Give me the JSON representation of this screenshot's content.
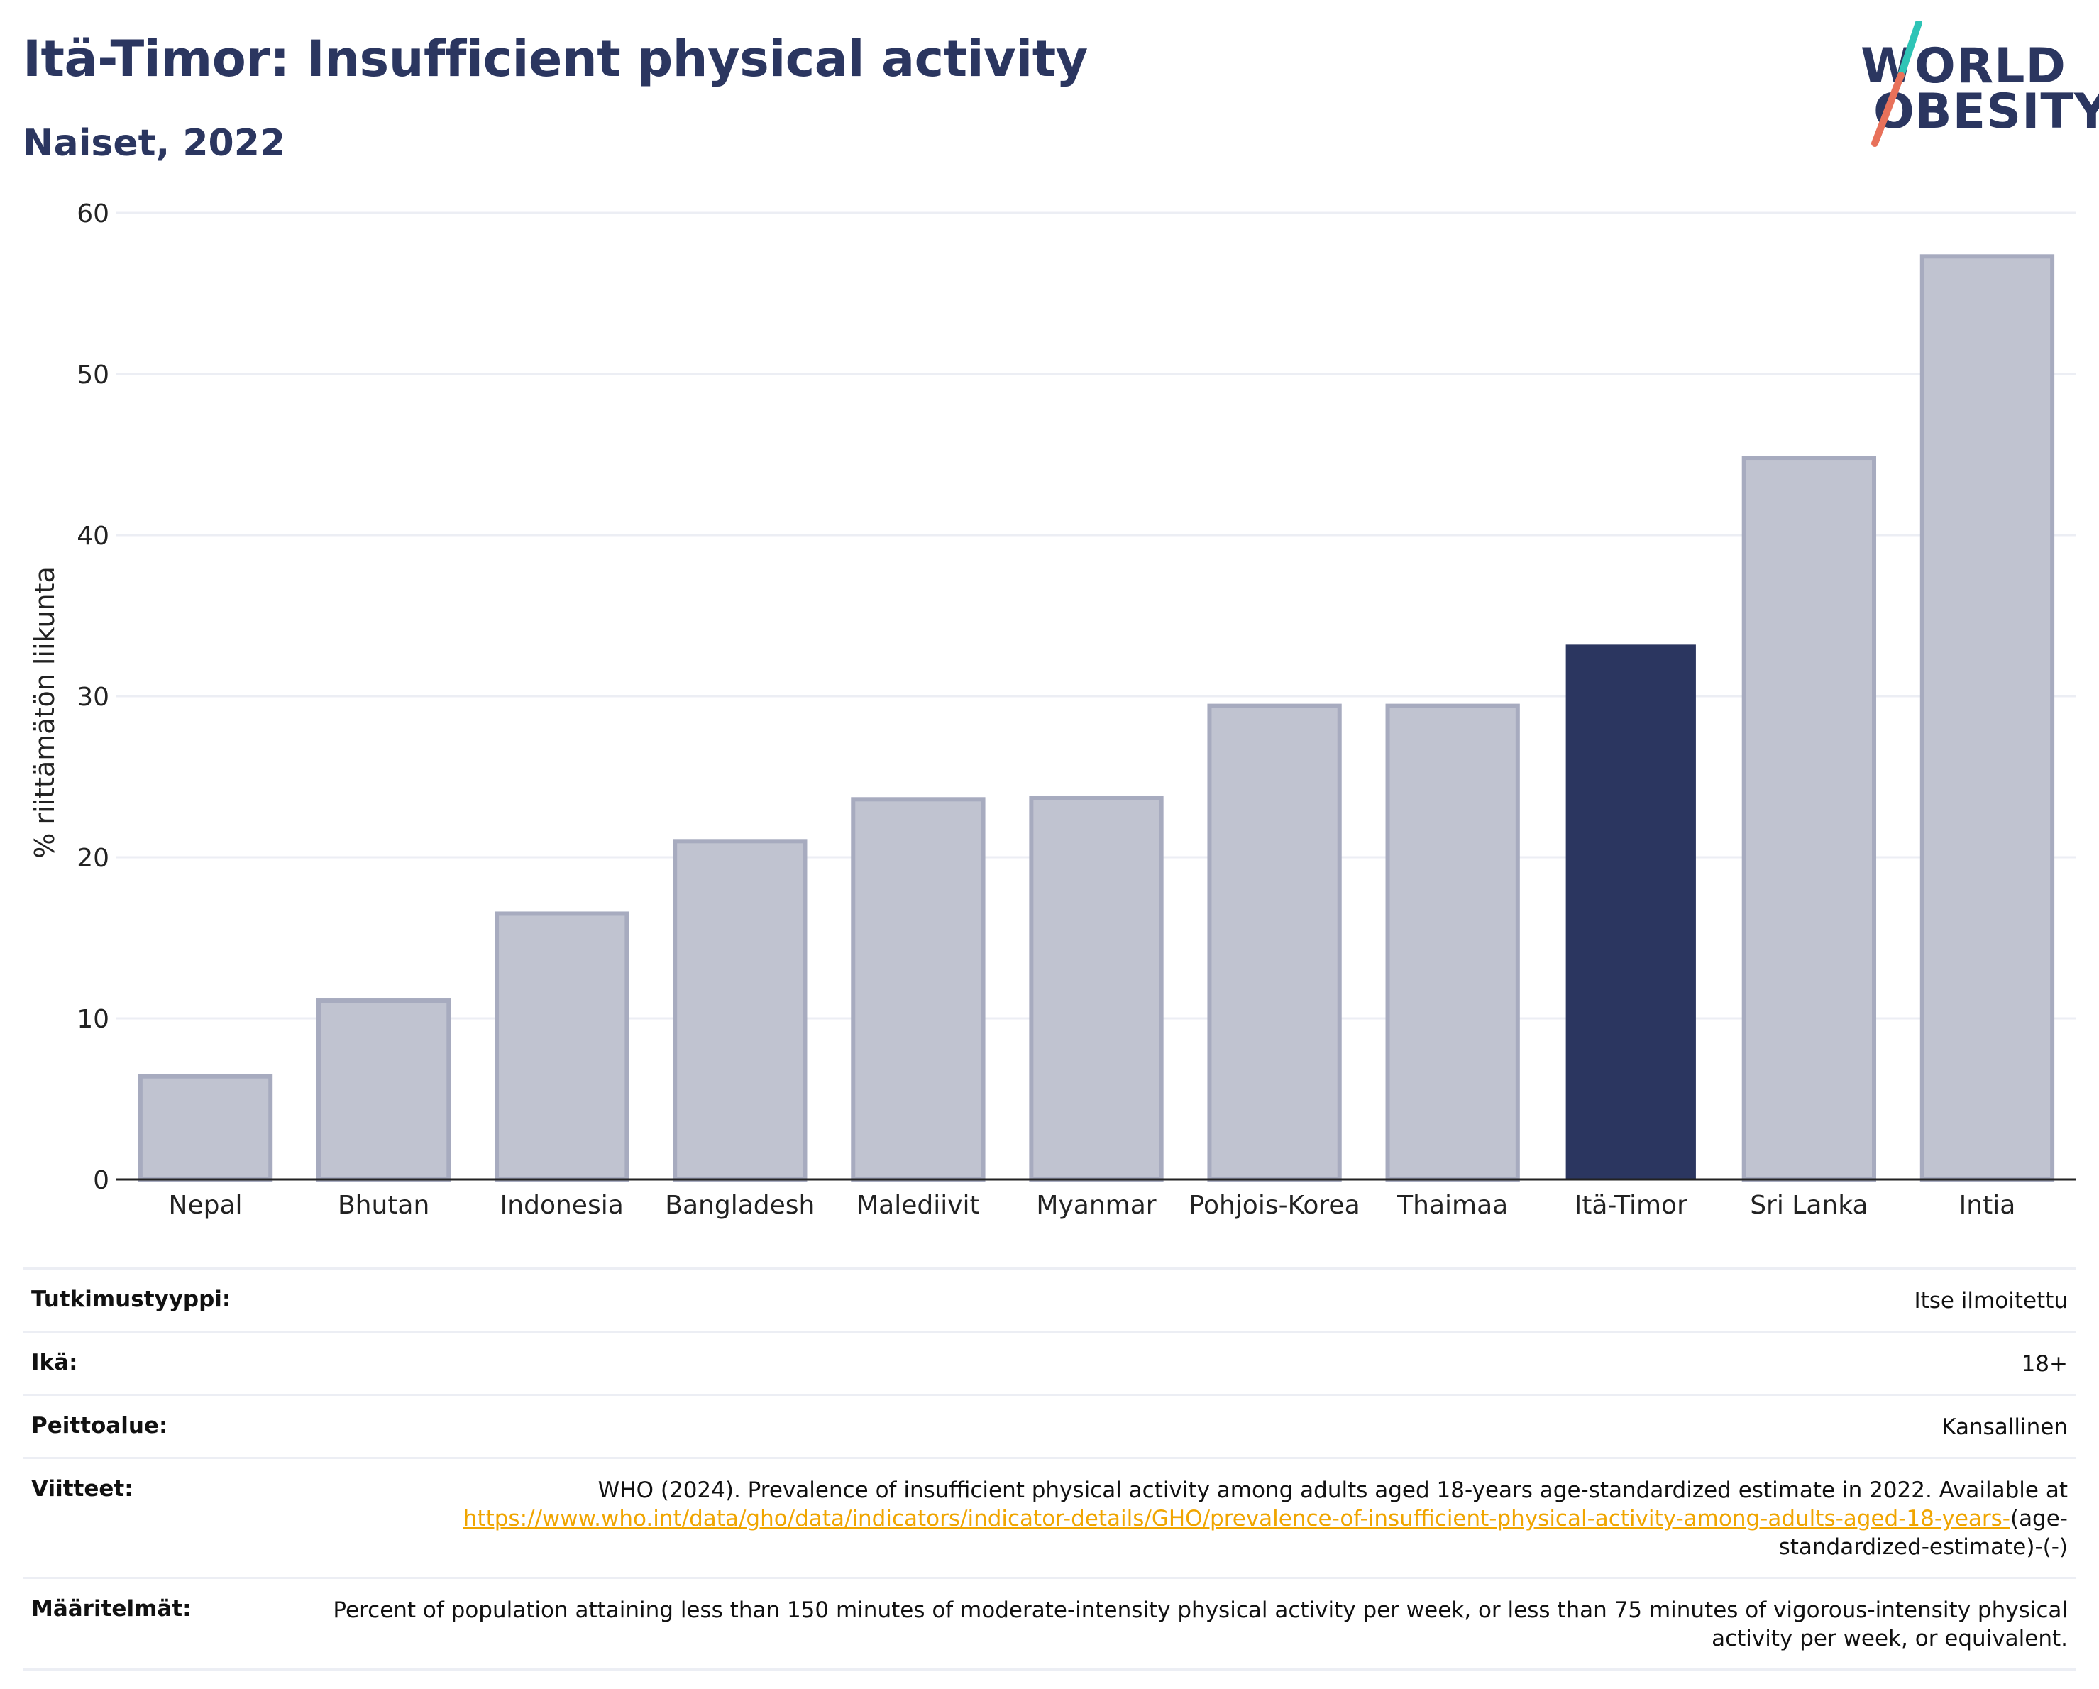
{
  "header": {
    "title": "Itä-Timor: Insufficient physical activity",
    "subtitle": "Naiset, 2022"
  },
  "logo": {
    "line1": "WORLD",
    "line2": "OBESITY",
    "colors": {
      "text": "#2b3660",
      "slash_top": "#2ec4b6",
      "slash_bottom": "#e8715a"
    }
  },
  "colors": {
    "bar": "#c0c3d0",
    "bar_stroke": "#a7abbf",
    "highlight": "#2b3660",
    "grid": "#eceef4",
    "link": "#f0a500"
  },
  "chart_data": {
    "type": "bar",
    "ylabel": "% riittämätön liikunta",
    "xlabel": "",
    "ylim": [
      0,
      60
    ],
    "yticks": [
      0,
      10,
      20,
      30,
      40,
      50,
      60
    ],
    "grid": true,
    "highlight": "Itä-Timor",
    "categories": [
      "Nepal",
      "Bhutan",
      "Indonesia",
      "Bangladesh",
      "Malediivit",
      "Myanmar",
      "Pohjois-Korea",
      "Thaimaa",
      "Itä-Timor",
      "Sri Lanka",
      "Intia"
    ],
    "values": [
      6.4,
      11.1,
      16.5,
      21.0,
      23.6,
      23.7,
      29.4,
      29.4,
      33.2,
      44.8,
      57.3
    ]
  },
  "info": {
    "rows": [
      {
        "label": "Tutkimustyyppi:",
        "value": "Itse ilmoitettu"
      },
      {
        "label": "Ikä:",
        "value": "18+"
      },
      {
        "label": "Peittoalue:",
        "value": "Kansallinen"
      },
      {
        "label": "Viitteet:",
        "value": "WHO (2024). Prevalence of insufficient physical activity among adults aged 18-years age-standardized estimate in 2022. Available at",
        "link": "https://www.who.int/data/gho/data/indicators/indicator-details/GHO/prevalence-of-insufficient-physical-activity-among-adults-aged-18-years-",
        "suffix": "(age-standardized-estimate)-(-)"
      },
      {
        "label": "Määritelmät:",
        "value": "Percent of population attaining less than 150 minutes of moderate-intensity physical activity per week, or less than 75 minutes of vigorous-intensity physical activity per week, or equivalent."
      }
    ]
  }
}
